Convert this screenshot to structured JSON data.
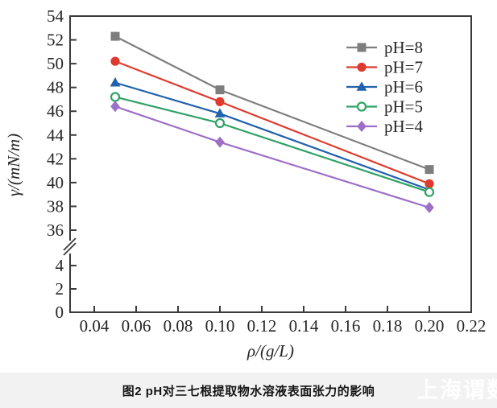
{
  "caption": {
    "text": "图2  pH对三七根提取物水溶液表面张力的影响"
  },
  "watermark": {
    "text": "上海谓数",
    "color": "#ffffff"
  },
  "colors": {
    "axis": "#3b3b3b",
    "tick_label": "#262626",
    "caption_bar_bg": "#f2f2f2"
  },
  "chart_data": {
    "type": "line",
    "title": "",
    "xlabel": "ρ/(g/L)",
    "ylabel": "γ/(mN/m)",
    "grid": false,
    "legend_position": "top-right",
    "x_tick_labels": [
      "0.04",
      "0.06",
      "0.08",
      "0.10",
      "0.12",
      "0.14",
      "0.16",
      "0.18",
      "0.20",
      "0.22"
    ],
    "y_axis_break": true,
    "y_tick_labels_upper": [
      "54",
      "52",
      "50",
      "48",
      "46",
      "44",
      "42",
      "40",
      "38",
      "36"
    ],
    "y_tick_labels_lower": [
      "4",
      "2",
      "0"
    ],
    "ylim_upper": [
      36,
      54
    ],
    "ylim_lower": [
      0,
      4
    ],
    "xlim": [
      0.028,
      0.229
    ],
    "x": [
      0.05,
      0.1,
      0.2
    ],
    "series": [
      {
        "name": "pH=8",
        "values": [
          52.3,
          47.8,
          41.1
        ],
        "color": "#7e7e7e",
        "marker": "square"
      },
      {
        "name": "pH=7",
        "values": [
          50.2,
          46.8,
          39.9
        ],
        "color": "#de3b2f",
        "marker": "circle"
      },
      {
        "name": "pH=6",
        "values": [
          48.4,
          45.8,
          39.4
        ],
        "color": "#2261ad",
        "marker": "triangle"
      },
      {
        "name": "pH=5",
        "values": [
          47.2,
          45.0,
          39.2
        ],
        "color": "#2ea266",
        "marker": "circle-open"
      },
      {
        "name": "pH=4",
        "values": [
          46.4,
          43.4,
          37.9
        ],
        "color": "#9c70c7",
        "marker": "diamond"
      }
    ]
  }
}
